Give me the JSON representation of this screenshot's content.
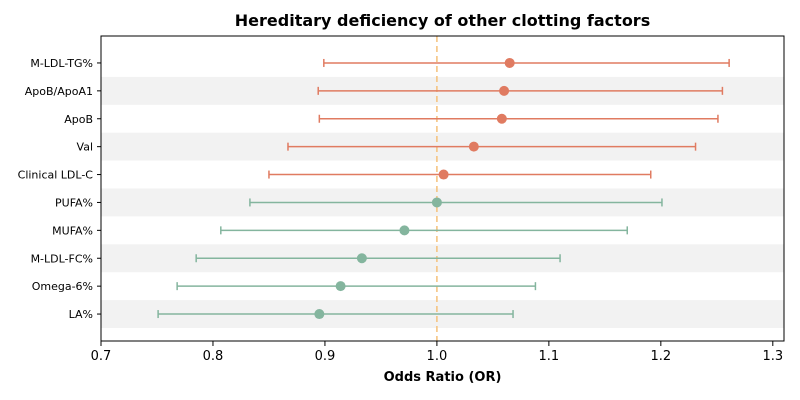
{
  "chart_data": {
    "type": "forest",
    "title": "Hereditary deficiency of other clotting factors",
    "xlabel": "Odds Ratio (OR)",
    "ylabel": "",
    "xlim": [
      0.7,
      1.31
    ],
    "xticks": [
      "0.7",
      "0.8",
      "0.9",
      "1.0",
      "1.1",
      "1.2",
      "1.3"
    ],
    "reference_line": 1.0,
    "colors": {
      "above": "#e07b61",
      "below": "#84b59e",
      "reference": "#f5c07a",
      "band": "#f2f2f2"
    },
    "rows": [
      {
        "label": "M-LDL-TG%",
        "or": 1.065,
        "lower": 0.899,
        "upper": 1.261
      },
      {
        "label": "ApoB/ApoA1",
        "or": 1.06,
        "lower": 0.894,
        "upper": 1.255
      },
      {
        "label": "ApoB",
        "or": 1.058,
        "lower": 0.895,
        "upper": 1.251
      },
      {
        "label": "Val",
        "or": 1.033,
        "lower": 0.867,
        "upper": 1.231
      },
      {
        "label": "Clinical LDL-C",
        "or": 1.006,
        "lower": 0.85,
        "upper": 1.191
      },
      {
        "label": "PUFA%",
        "or": 1.0,
        "lower": 0.833,
        "upper": 1.201
      },
      {
        "label": "MUFA%",
        "or": 0.971,
        "lower": 0.807,
        "upper": 1.17
      },
      {
        "label": "M-LDL-FC%",
        "or": 0.933,
        "lower": 0.785,
        "upper": 1.11
      },
      {
        "label": "Omega-6%",
        "or": 0.914,
        "lower": 0.768,
        "upper": 1.088
      },
      {
        "label": "LA%",
        "or": 0.895,
        "lower": 0.751,
        "upper": 1.068
      }
    ]
  }
}
